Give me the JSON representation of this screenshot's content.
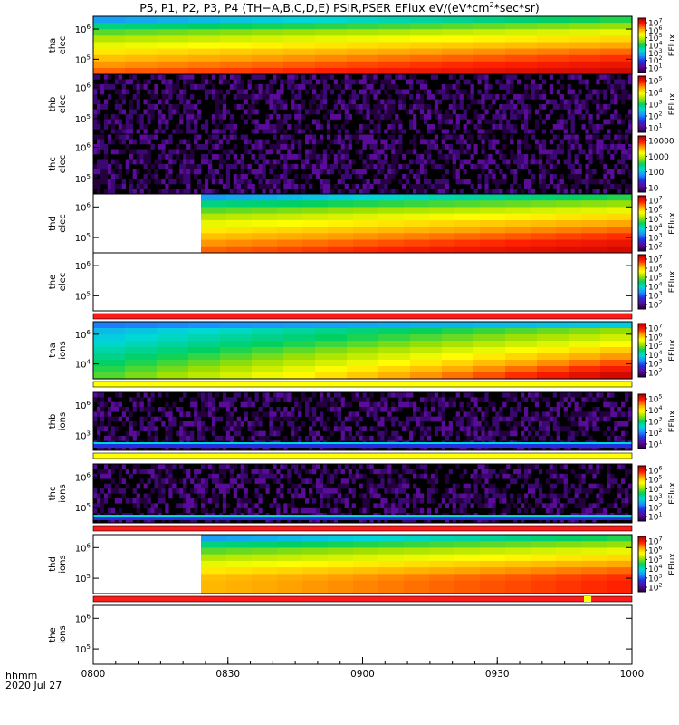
{
  "title_pre": "P5, P1, P2, P3, P4 (TH−A,B,C,D,E) PSIR,PSER EFlux eV/(eV*cm",
  "title_sup": "2",
  "title_post": "*sec*sr)",
  "time_label_fmt": "hhmm",
  "date_label": "2020 Jul 27",
  "chart_data": {
    "type": "heatmap",
    "x": {
      "start": "0800",
      "end": "1000",
      "ticks": [
        "0800",
        "0830",
        "0900",
        "0930",
        "1000"
      ]
    },
    "colormap": [
      "#2b004b",
      "#5a0b9a",
      "#2030e0",
      "#1e90ff",
      "#00d8d8",
      "#00d060",
      "#a0e000",
      "#ffff00",
      "#ffa500",
      "#ff2000",
      "#c00000"
    ],
    "panels": [
      {
        "id": "tha-elec",
        "label1": "tha",
        "label2": "elec",
        "yticks": [
          "10^6",
          "10^5"
        ],
        "cbar_label": "EFlux",
        "cbar_ticks": [
          "10^7",
          "10^6",
          "10^5",
          "10^4",
          "10^3",
          "10^2",
          "10^1"
        ],
        "pattern": "smooth",
        "start_frac": 0.0,
        "intensity": 0.88,
        "mode_bar": null
      },
      {
        "id": "thb-elec",
        "label1": "thb",
        "label2": "elec",
        "yticks": [
          "10^6",
          "10^5"
        ],
        "cbar_label": "EFlux",
        "cbar_ticks": [
          "10^5",
          "10^4",
          "10^3",
          "10^2",
          "10^1"
        ],
        "pattern": "noise",
        "start_frac": 0.0,
        "intensity": 0.15,
        "mode_bar": null
      },
      {
        "id": "thc-elec",
        "label1": "thc",
        "label2": "elec",
        "yticks": [
          "10^6",
          "10^5"
        ],
        "cbar_label": "",
        "cbar_ticks": [
          "10000",
          "1000",
          "100",
          "10"
        ],
        "pattern": "noise",
        "start_frac": 0.0,
        "intensity": 0.15,
        "mode_bar": null
      },
      {
        "id": "thd-elec",
        "label1": "thd",
        "label2": "elec",
        "yticks": [
          "10^6",
          "10^5"
        ],
        "cbar_label": "EFlux",
        "cbar_ticks": [
          "10^7",
          "10^6",
          "10^5",
          "10^4",
          "10^3",
          "10^2"
        ],
        "pattern": "smooth",
        "start_frac": 0.2,
        "intensity": 0.92,
        "mode_bar": null
      },
      {
        "id": "the-elec",
        "label1": "the",
        "label2": "elec",
        "yticks": [
          "10^6",
          "10^5"
        ],
        "cbar_label": "EFlux",
        "cbar_ticks": [
          "10^7",
          "10^6",
          "10^5",
          "10^4",
          "10^3",
          "10^2"
        ],
        "pattern": "empty",
        "start_frac": 0.0,
        "intensity": 0.0,
        "mode_bar": "red"
      },
      {
        "id": "tha-ions",
        "label1": "tha",
        "label2": "ions",
        "yticks": [
          "10^6",
          "10^4"
        ],
        "cbar_label": "EFlux",
        "cbar_ticks": [
          "10^7",
          "10^6",
          "10^5",
          "10^4",
          "10^3",
          "10^2"
        ],
        "pattern": "smooth_ions",
        "start_frac": 0.0,
        "intensity": 0.72,
        "mode_bar": "yellow"
      },
      {
        "id": "thb-ions",
        "label1": "thb",
        "label2": "ions",
        "yticks": [
          "10^6",
          "10^3"
        ],
        "cbar_label": "EFlux",
        "cbar_ticks": [
          "10^5",
          "10^4",
          "10^3",
          "10^2",
          "10^1"
        ],
        "pattern": "noise_band",
        "start_frac": 0.0,
        "intensity": 0.15,
        "mode_bar": "yellow"
      },
      {
        "id": "thc-ions",
        "label1": "thc",
        "label2": "ions",
        "yticks": [
          "10^6",
          "10^5"
        ],
        "cbar_label": "EFlux",
        "cbar_ticks": [
          "10^6",
          "10^5",
          "10^4",
          "10^3",
          "10^2",
          "10^1"
        ],
        "pattern": "noise_band",
        "start_frac": 0.0,
        "intensity": 0.15,
        "mode_bar": "red"
      },
      {
        "id": "thd-ions",
        "label1": "thd",
        "label2": "ions",
        "yticks": [
          "10^6",
          "10^5"
        ],
        "cbar_label": "EFlux",
        "cbar_ticks": [
          "10^7",
          "10^6",
          "10^5",
          "10^4",
          "10^3",
          "10^2"
        ],
        "pattern": "smooth",
        "start_frac": 0.2,
        "intensity": 0.78,
        "mode_bar": "red"
      },
      {
        "id": "the-ions",
        "label1": "the",
        "label2": "ions",
        "yticks": [
          "10^6",
          "10^5"
        ],
        "cbar_label": "",
        "cbar_ticks": [],
        "pattern": "empty",
        "start_frac": 0.0,
        "intensity": 0.0,
        "mode_bar": null
      }
    ]
  }
}
